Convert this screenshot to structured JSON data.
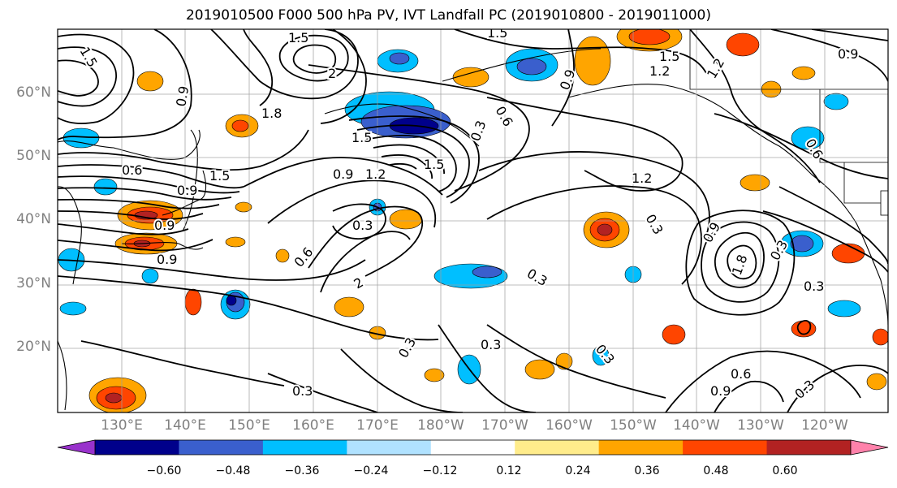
{
  "title": "2019010500 F000 500 hPa PV, IVT Landfall PC (2019010800 - 2019011000)",
  "lat_labels": [
    "60°N",
    "50°N",
    "40°N",
    "30°N",
    "20°N"
  ],
  "lon_labels": [
    "130°E",
    "140°E",
    "150°E",
    "160°E",
    "170°E",
    "180°W",
    "170°W",
    "160°W",
    "150°W",
    "140°W",
    "130°W",
    "120°W"
  ],
  "colorbar": {
    "colors": [
      "#9932cc",
      "#00008b",
      "#3a5fcd",
      "#00bfff",
      "#b0e2ff",
      "#ffffff",
      "#ffec8b",
      "#ffa500",
      "#ff4500",
      "#b22222",
      "#ff82ab"
    ],
    "tick_labels": [
      "−0.60",
      "−0.48",
      "−0.36",
      "−0.24",
      "−0.12",
      "0.12",
      "0.24",
      "0.36",
      "0.48",
      "0.60"
    ]
  },
  "contour_labels": [
    "1.5",
    "1.5",
    "0.9",
    "2",
    "1.8",
    "1.5",
    "0.6",
    "0.9",
    "1.5",
    "0.3",
    "1.2",
    "1.5",
    "0.9",
    "0.9",
    "1.2",
    "0.3",
    "0.6",
    "0.9",
    "0.9",
    "0.3",
    "0.6",
    "0.9",
    "1.2",
    "0.9",
    "1.8",
    "0.3",
    "0.3",
    "0.3",
    "0.3",
    "0.3",
    "2",
    "0.6",
    "0.9",
    "0.3",
    "1.5",
    "1.2",
    "0.6",
    "1.5",
    "0.3",
    "0.3"
  ]
}
